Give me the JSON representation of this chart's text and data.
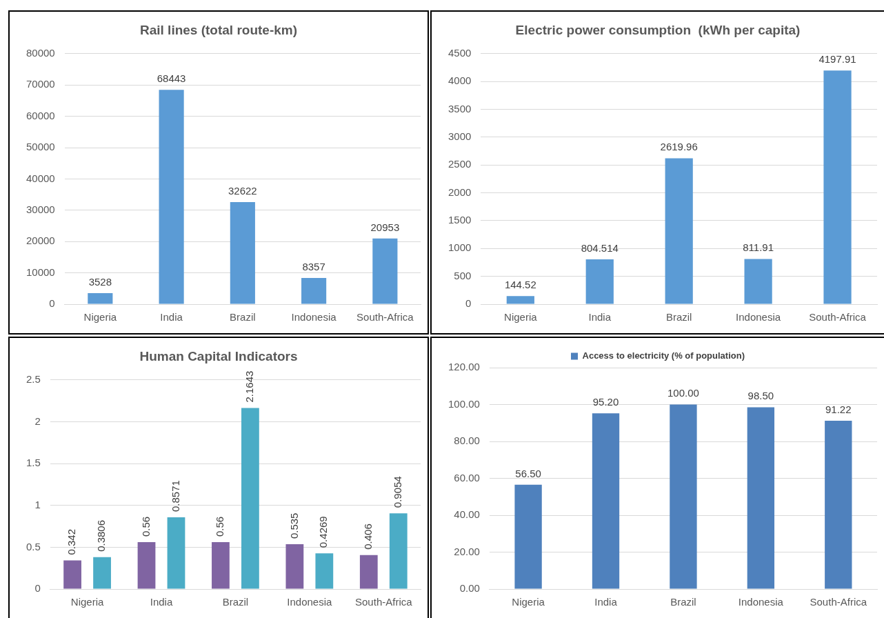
{
  "chart_data": [
    {
      "type": "bar",
      "title": "Rail lines (total route-km)",
      "categories": [
        "Nigeria",
        "India",
        "Brazil",
        "Indonesia",
        "South-Africa"
      ],
      "values": [
        3528,
        68443,
        32622,
        8357,
        20953
      ],
      "color": "#5b9bd5",
      "ylim": [
        0,
        80000
      ],
      "yticks": [
        0,
        10000,
        20000,
        30000,
        40000,
        50000,
        60000,
        70000,
        80000
      ],
      "grid": "y",
      "data_labels": true,
      "legend": false
    },
    {
      "type": "bar",
      "title": "Electric power consumption  (kWh per capita)",
      "categories": [
        "Nigeria",
        "India",
        "Brazil",
        "Indonesia",
        "South-Africa"
      ],
      "values": [
        144.52,
        804.514,
        2619.96,
        811.91,
        4197.91
      ],
      "color": "#5b9bd5",
      "ylim": [
        0,
        4500
      ],
      "yticks": [
        0,
        500,
        1000,
        1500,
        2000,
        2500,
        3000,
        3500,
        4000,
        4500
      ],
      "grid": "y",
      "data_labels": true,
      "legend": false
    },
    {
      "type": "bar",
      "title": "Human Capital Indicators",
      "categories": [
        "Nigeria",
        "India",
        "Brazil",
        "Indonesia",
        "South-Africa"
      ],
      "series": [
        {
          "color": "#8064a2",
          "values": [
            0.342,
            0.56,
            0.56,
            0.535,
            0.406
          ]
        },
        {
          "color": "#4bacc6",
          "values": [
            0.3806,
            0.8571,
            2.1643,
            0.4269,
            0.9054
          ]
        }
      ],
      "ylim": [
        0,
        2.5
      ],
      "yticks": [
        0,
        0.5,
        1,
        1.5,
        2,
        2.5
      ],
      "grid": "y",
      "data_labels": true,
      "legend": false
    },
    {
      "type": "bar",
      "categories": [
        "Nigeria",
        "India",
        "Brazil",
        "Indonesia",
        "South-Africa"
      ],
      "series": [
        {
          "name": "Access to electricity (% of population)",
          "color": "#4f81bd",
          "values": [
            56.5,
            95.2,
            100,
            98.5,
            91.22
          ],
          "value_labels": [
            "56.50",
            "95.20",
            "100.00",
            "98.50",
            "91.22"
          ]
        }
      ],
      "ylim": [
        0,
        120
      ],
      "yticks": [
        {
          "value": 0,
          "label": "0.00"
        },
        {
          "value": 20,
          "label": "20.00"
        },
        {
          "value": 40,
          "label": "40.00"
        },
        {
          "value": 60,
          "label": "60.00"
        },
        {
          "value": 80,
          "label": "80.00"
        },
        {
          "value": 100,
          "label": "100.00"
        },
        {
          "value": 120,
          "label": "120.00"
        }
      ],
      "grid": "y",
      "legend": "top"
    }
  ]
}
